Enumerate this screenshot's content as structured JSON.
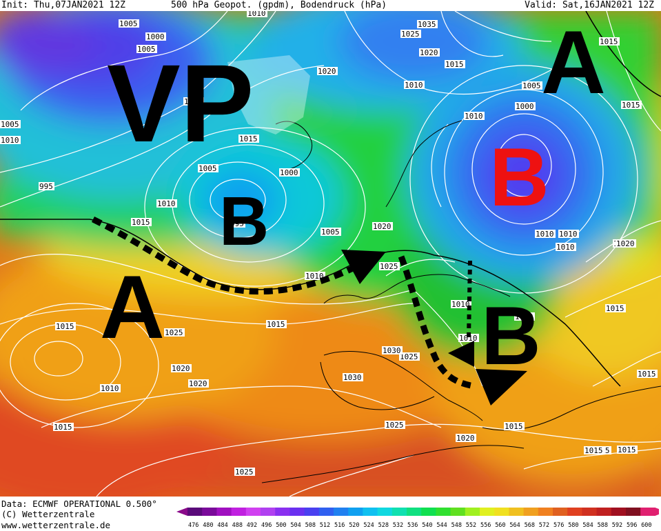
{
  "header": {
    "init": "Init: Thu,07JAN2021 12Z",
    "title": "500 hPa Geopot. (gpdm), Bodendruck (hPa)",
    "valid": "Valid: Sat,16JAN2021 12Z"
  },
  "annotations": {
    "vp": "VP",
    "high_nw": "A",
    "high_ne": "A",
    "low_iceland": "B",
    "low_russia": "B",
    "low_balkan": "B"
  },
  "isobar_labels": [
    "1010",
    "1005",
    "1000",
    "1005",
    "1005",
    "1015",
    "1020",
    "1025",
    "1035",
    "1010",
    "1015",
    "1020",
    "1010",
    "1000",
    "1005",
    "1015",
    "1010",
    "1015",
    "1005",
    "1000",
    "995",
    "1010",
    "1015",
    "1005",
    "1020",
    "1025",
    "1010",
    "1015",
    "995",
    "1005",
    "1010",
    "1010",
    "1015",
    "1010",
    "1020",
    "1015",
    "1025",
    "1030",
    "1025",
    "1015",
    "1020",
    "1010",
    "1020",
    "1015",
    "1030",
    "1025",
    "1020",
    "1015",
    "1025",
    "1015",
    "1015",
    "1010",
    "1020",
    "1010",
    "1000",
    "1015"
  ],
  "footer": {
    "data_source": "Data: ECMWF OPERATIONAL 0.500°",
    "copyright": "(C) Wetterzentrale",
    "url": "www.wetterzentrale.de"
  },
  "legend": {
    "values": [
      "476",
      "480",
      "484",
      "488",
      "492",
      "496",
      "500",
      "504",
      "508",
      "512",
      "516",
      "520",
      "524",
      "528",
      "532",
      "536",
      "540",
      "544",
      "548",
      "552",
      "556",
      "560",
      "564",
      "568",
      "572",
      "576",
      "580",
      "584",
      "588",
      "592",
      "596",
      "600"
    ],
    "colors": [
      "#5a0a7a",
      "#7a0a9a",
      "#a010c0",
      "#c020e0",
      "#d040f0",
      "#b040f0",
      "#8a30f0",
      "#6a30f0",
      "#4a40f0",
      "#3060f0",
      "#2080f0",
      "#10a0f0",
      "#10c0f0",
      "#10d8e0",
      "#10e0b0",
      "#10e080",
      "#10e050",
      "#30e030",
      "#60e020",
      "#a0f020",
      "#e0f020",
      "#f0e020",
      "#f0c020",
      "#f0a020",
      "#f08020",
      "#e06020",
      "#e04020",
      "#d03020",
      "#c02020",
      "#a01020",
      "#801020",
      "#e02070"
    ],
    "arrow_left_color": "#8a0a8a",
    "arrow_right_color": "#e02070"
  },
  "colors": {
    "vp_text": "#000000",
    "low_russia_text": "#ee1111",
    "isobar": "#ffffff",
    "arrow": "#000000"
  }
}
